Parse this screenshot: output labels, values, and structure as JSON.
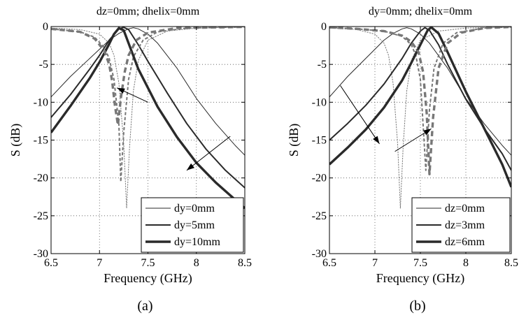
{
  "chart_data": [
    {
      "type": "line",
      "subfigure_label": "(a)",
      "title": "dz=0mm; dhelix=0mm",
      "xlabel": "Frequency (GHz)",
      "ylabel": "S (dB)",
      "xlim": [
        6.5,
        8.5
      ],
      "ylim": [
        -30,
        0
      ],
      "xticks": [
        6.5,
        7,
        7.5,
        8,
        8.5
      ],
      "yticks": [
        0,
        -5,
        -10,
        -15,
        -20,
        -25,
        -30
      ],
      "grid": true,
      "legend_position": "bottom-right",
      "legend": [
        "dy=0mm",
        "dy=5mm",
        "dy=10mm"
      ],
      "series": [
        {
          "name": "dy=0mm",
          "kind": "transmission",
          "style": "solid",
          "weight": "thin",
          "x": [
            6.5,
            6.7,
            6.9,
            7.1,
            7.2,
            7.3,
            7.35,
            7.4,
            7.5,
            7.6,
            7.8,
            8.0,
            8.2,
            8.4,
            8.5
          ],
          "y": [
            -9.3,
            -6.6,
            -4.2,
            -1.8,
            -0.9,
            -0.3,
            -0.15,
            -0.3,
            -1.0,
            -2.2,
            -5.5,
            -9.5,
            -12.8,
            -15.7,
            -17.0
          ]
        },
        {
          "name": "dy=0mm",
          "kind": "reflection",
          "style": "dashed",
          "weight": "thin",
          "x": [
            6.5,
            6.8,
            7.0,
            7.1,
            7.15,
            7.2,
            7.25,
            7.28,
            7.31,
            7.35,
            7.4,
            7.5,
            7.7,
            8.0,
            8.5
          ],
          "y": [
            -0.2,
            -0.4,
            -1.0,
            -2.2,
            -3.8,
            -7.5,
            -15.5,
            -24.0,
            -16.0,
            -8.5,
            -4.5,
            -1.8,
            -0.6,
            -0.2,
            -0.05
          ]
        },
        {
          "name": "dy=5mm",
          "kind": "transmission",
          "style": "solid",
          "weight": "medium",
          "x": [
            6.5,
            6.7,
            6.9,
            7.0,
            7.1,
            7.2,
            7.25,
            7.3,
            7.4,
            7.5,
            7.7,
            7.9,
            8.1,
            8.3,
            8.5
          ],
          "y": [
            -12.0,
            -9.0,
            -5.6,
            -3.8,
            -1.8,
            -0.3,
            -0.1,
            -0.4,
            -2.4,
            -4.6,
            -8.8,
            -12.8,
            -16.2,
            -19.0,
            -21.3
          ]
        },
        {
          "name": "dy=5mm",
          "kind": "reflection",
          "style": "dashed",
          "weight": "medium",
          "x": [
            6.5,
            6.8,
            6.95,
            7.05,
            7.1,
            7.15,
            7.2,
            7.22,
            7.25,
            7.3,
            7.35,
            7.45,
            7.6,
            7.9,
            8.5
          ],
          "y": [
            -0.3,
            -0.7,
            -1.4,
            -2.8,
            -4.2,
            -7.0,
            -13.0,
            -20.5,
            -14.0,
            -7.0,
            -4.0,
            -1.8,
            -0.7,
            -0.2,
            -0.05
          ]
        },
        {
          "name": "dy=10mm",
          "kind": "transmission",
          "style": "solid",
          "weight": "thick",
          "x": [
            6.5,
            6.7,
            6.9,
            7.0,
            7.1,
            7.15,
            7.2,
            7.25,
            7.3,
            7.4,
            7.6,
            7.8,
            8.0,
            8.2,
            8.5
          ],
          "y": [
            -14.0,
            -10.5,
            -6.8,
            -4.7,
            -2.3,
            -1.0,
            -0.2,
            -0.5,
            -2.2,
            -5.6,
            -10.6,
            -14.6,
            -18.0,
            -20.6,
            -24.0
          ]
        },
        {
          "name": "dy=10mm",
          "kind": "reflection",
          "style": "dashed",
          "weight": "thick",
          "x": [
            6.5,
            6.8,
            6.95,
            7.05,
            7.1,
            7.13,
            7.16,
            7.19,
            7.22,
            7.26,
            7.3,
            7.38,
            7.5,
            7.8,
            8.5
          ],
          "y": [
            -0.3,
            -0.7,
            -1.6,
            -3.2,
            -5.0,
            -7.2,
            -10.5,
            -13.0,
            -9.5,
            -6.0,
            -3.8,
            -1.8,
            -0.8,
            -0.2,
            -0.05
          ]
        }
      ],
      "arrows": [
        {
          "from": [
            7.5,
            -10.0
          ],
          "to": [
            7.18,
            -8.1
          ]
        },
        {
          "from": [
            8.35,
            -14.5
          ],
          "to": [
            7.9,
            -19.0
          ]
        }
      ]
    },
    {
      "type": "line",
      "subfigure_label": "(b)",
      "title": "dy=0mm; dhelix=0mm",
      "xlabel": "Frequency (GHz)",
      "ylabel": "S (dB)",
      "xlim": [
        6.5,
        8.5
      ],
      "ylim": [
        -30,
        0
      ],
      "xticks": [
        6.5,
        7,
        7.5,
        8,
        8.5
      ],
      "yticks": [
        0,
        -5,
        -10,
        -15,
        -20,
        -25,
        -30
      ],
      "grid": true,
      "legend_position": "bottom-right",
      "legend": [
        "dz=0mm",
        "dz=3mm",
        "dz=6mm"
      ],
      "series": [
        {
          "name": "dz=0mm",
          "kind": "transmission",
          "style": "solid",
          "weight": "thin",
          "x": [
            6.5,
            6.7,
            6.9,
            7.1,
            7.2,
            7.3,
            7.35,
            7.4,
            7.5,
            7.6,
            7.8,
            8.0,
            8.2,
            8.4,
            8.5
          ],
          "y": [
            -9.3,
            -6.6,
            -4.2,
            -1.8,
            -0.9,
            -0.3,
            -0.15,
            -0.3,
            -1.0,
            -2.2,
            -5.5,
            -9.5,
            -12.8,
            -15.7,
            -17.0
          ]
        },
        {
          "name": "dz=0mm",
          "kind": "reflection",
          "style": "dashed",
          "weight": "thin",
          "x": [
            6.5,
            6.8,
            7.0,
            7.1,
            7.15,
            7.2,
            7.25,
            7.28,
            7.31,
            7.35,
            7.4,
            7.5,
            7.7,
            8.0,
            8.5
          ],
          "y": [
            -0.2,
            -0.4,
            -1.0,
            -2.2,
            -3.8,
            -7.5,
            -15.5,
            -24.0,
            -16.0,
            -8.5,
            -4.5,
            -1.8,
            -0.6,
            -0.2,
            -0.05
          ]
        },
        {
          "name": "dz=3mm",
          "kind": "transmission",
          "style": "solid",
          "weight": "medium",
          "x": [
            6.5,
            6.7,
            6.9,
            7.1,
            7.3,
            7.4,
            7.5,
            7.55,
            7.6,
            7.7,
            7.8,
            8.0,
            8.2,
            8.4,
            8.5
          ],
          "y": [
            -15.0,
            -12.8,
            -10.4,
            -7.6,
            -4.2,
            -2.2,
            -0.6,
            -0.15,
            -0.5,
            -2.4,
            -5.0,
            -9.6,
            -13.4,
            -16.8,
            -19.0
          ]
        },
        {
          "name": "dz=3mm",
          "kind": "reflection",
          "style": "dashed",
          "weight": "medium",
          "x": [
            6.5,
            6.8,
            7.1,
            7.3,
            7.4,
            7.45,
            7.5,
            7.53,
            7.56,
            7.6,
            7.65,
            7.75,
            7.9,
            8.2,
            8.5
          ],
          "y": [
            -0.1,
            -0.3,
            -0.6,
            -1.3,
            -2.4,
            -3.8,
            -7.0,
            -13.0,
            -19.0,
            -11.0,
            -5.5,
            -2.2,
            -0.8,
            -0.2,
            -0.05
          ]
        },
        {
          "name": "dz=6mm",
          "kind": "transmission",
          "style": "solid",
          "weight": "thick",
          "x": [
            6.5,
            6.7,
            6.9,
            7.1,
            7.3,
            7.4,
            7.5,
            7.58,
            7.62,
            7.7,
            7.8,
            8.0,
            8.2,
            8.4,
            8.5
          ],
          "y": [
            -18.2,
            -16.0,
            -13.6,
            -10.7,
            -7.1,
            -4.8,
            -2.4,
            -0.5,
            -0.1,
            -0.9,
            -3.4,
            -8.6,
            -13.4,
            -18.2,
            -21.2
          ]
        },
        {
          "name": "dz=6mm",
          "kind": "reflection",
          "style": "dashed",
          "weight": "thick",
          "x": [
            6.5,
            6.8,
            7.1,
            7.3,
            7.4,
            7.48,
            7.53,
            7.57,
            7.6,
            7.64,
            7.7,
            7.8,
            7.95,
            8.2,
            8.5
          ],
          "y": [
            -0.1,
            -0.3,
            -0.6,
            -1.2,
            -2.0,
            -3.4,
            -6.0,
            -11.5,
            -19.5,
            -12.0,
            -5.5,
            -2.2,
            -0.8,
            -0.2,
            -0.05
          ]
        }
      ],
      "arrows": [
        {
          "from": [
            6.62,
            -7.8
          ],
          "to": [
            7.05,
            -15.5
          ]
        },
        {
          "from": [
            7.22,
            -16.5
          ],
          "to": [
            7.62,
            -13.5
          ]
        }
      ]
    }
  ]
}
